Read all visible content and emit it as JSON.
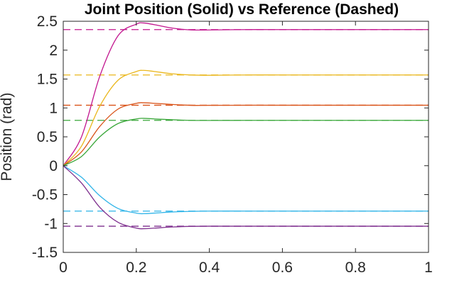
{
  "chart_data": {
    "type": "line",
    "title": "Joint Position (Solid) vs Reference (Dashed)",
    "xlabel": "",
    "ylabel": "Position (rad)",
    "xlim": [
      0,
      1
    ],
    "ylim": [
      -1.5,
      2.5
    ],
    "xticks": [
      0,
      0.2,
      0.4,
      0.6,
      0.8,
      1
    ],
    "xtick_labels": [
      "0",
      "0.2",
      "0.4",
      "0.6",
      "0.8",
      "1"
    ],
    "yticks": [
      -1.5,
      -1,
      -0.5,
      0,
      0.5,
      1,
      1.5,
      2,
      2.5
    ],
    "ytick_labels": [
      "-1.5",
      "-1",
      "-0.5",
      "0",
      "0.5",
      "1",
      "1.5",
      "2",
      "2.5"
    ],
    "grid": false,
    "series": [
      {
        "color": "#c2168f",
        "reference": 2.356,
        "x": [
          0,
          0.05,
          0.1,
          0.15,
          0.2,
          0.22,
          0.25,
          0.3,
          0.35,
          0.4,
          0.5,
          0.6,
          0.7,
          0.8,
          0.9,
          1.0
        ],
        "y": [
          0,
          0.5,
          1.55,
          2.25,
          2.45,
          2.47,
          2.44,
          2.38,
          2.35,
          2.35,
          2.356,
          2.356,
          2.356,
          2.356,
          2.356,
          2.356
        ]
      },
      {
        "color": "#eab71d",
        "reference": 1.571,
        "x": [
          0,
          0.05,
          0.1,
          0.15,
          0.2,
          0.22,
          0.25,
          0.3,
          0.35,
          0.4,
          0.5,
          0.6,
          0.7,
          0.8,
          0.9,
          1.0
        ],
        "y": [
          0,
          0.34,
          1.03,
          1.48,
          1.63,
          1.65,
          1.63,
          1.59,
          1.57,
          1.565,
          1.571,
          1.571,
          1.571,
          1.571,
          1.571,
          1.571
        ]
      },
      {
        "color": "#d95319",
        "reference": 1.047,
        "x": [
          0,
          0.05,
          0.1,
          0.15,
          0.2,
          0.22,
          0.25,
          0.3,
          0.35,
          0.4,
          0.5,
          0.6,
          0.7,
          0.8,
          0.9,
          1.0
        ],
        "y": [
          0,
          0.24,
          0.68,
          0.98,
          1.08,
          1.09,
          1.08,
          1.06,
          1.045,
          1.045,
          1.047,
          1.047,
          1.047,
          1.047,
          1.047,
          1.047
        ]
      },
      {
        "color": "#3aa73a",
        "reference": 0.785,
        "x": [
          0,
          0.05,
          0.1,
          0.15,
          0.2,
          0.22,
          0.25,
          0.3,
          0.35,
          0.4,
          0.5,
          0.6,
          0.7,
          0.8,
          0.9,
          1.0
        ],
        "y": [
          0,
          0.16,
          0.5,
          0.73,
          0.81,
          0.82,
          0.81,
          0.795,
          0.785,
          0.784,
          0.785,
          0.785,
          0.785,
          0.785,
          0.785,
          0.785
        ]
      },
      {
        "color": "#2fb4e8",
        "reference": -0.785,
        "x": [
          0,
          0.05,
          0.1,
          0.15,
          0.2,
          0.22,
          0.25,
          0.3,
          0.35,
          0.4,
          0.5,
          0.6,
          0.7,
          0.8,
          0.9,
          1.0
        ],
        "y": [
          0,
          -0.2,
          -0.52,
          -0.74,
          -0.82,
          -0.83,
          -0.82,
          -0.8,
          -0.79,
          -0.785,
          -0.785,
          -0.785,
          -0.785,
          -0.785,
          -0.785,
          -0.785
        ]
      },
      {
        "color": "#7e2f8e",
        "reference": -1.047,
        "x": [
          0,
          0.05,
          0.1,
          0.15,
          0.2,
          0.22,
          0.25,
          0.3,
          0.35,
          0.4,
          0.5,
          0.6,
          0.7,
          0.8,
          0.9,
          1.0
        ],
        "y": [
          0,
          -0.3,
          -0.72,
          -0.98,
          -1.08,
          -1.09,
          -1.08,
          -1.06,
          -1.05,
          -1.047,
          -1.047,
          -1.047,
          -1.047,
          -1.047,
          -1.047,
          -1.047
        ]
      }
    ]
  }
}
